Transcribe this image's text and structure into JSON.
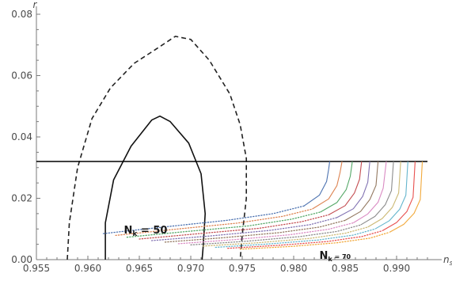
{
  "chart_data": {
    "type": "line",
    "title": "",
    "xlabel": "n",
    "xlabel_sub": "s",
    "ylabel": "r",
    "xlim": [
      0.955,
      0.993
    ],
    "ylim": [
      0.0,
      0.08
    ],
    "x_ticks": [
      0.955,
      0.96,
      0.965,
      0.97,
      0.975,
      0.98,
      0.985,
      0.99
    ],
    "x_tick_labels": [
      "0.955",
      "0.960",
      "0.965",
      "0.970",
      "0.975",
      "0.980",
      "0.985",
      "0.990"
    ],
    "y_ticks": [
      0.0,
      0.02,
      0.04,
      0.06,
      0.08
    ],
    "y_tick_labels": [
      "0.00",
      "0.02",
      "0.04",
      "0.06",
      "0.08"
    ],
    "grid": false,
    "hline": {
      "y": 0.032,
      "color": "#000000"
    },
    "contours": [
      {
        "style": "dashed",
        "color": "#222222",
        "points": [
          [
            0.958,
            0.0
          ],
          [
            0.9582,
            0.012
          ],
          [
            0.959,
            0.03
          ],
          [
            0.9604,
            0.046
          ],
          [
            0.9622,
            0.056
          ],
          [
            0.9645,
            0.064
          ],
          [
            0.9668,
            0.069
          ],
          [
            0.9685,
            0.0728
          ],
          [
            0.97,
            0.0718
          ],
          [
            0.9718,
            0.065
          ],
          [
            0.9738,
            0.054
          ],
          [
            0.9748,
            0.044
          ],
          [
            0.9754,
            0.033
          ],
          [
            0.9754,
            0.02
          ],
          [
            0.975,
            0.008
          ],
          [
            0.9748,
            0.0
          ]
        ]
      },
      {
        "style": "solid",
        "color": "#111111",
        "points": [
          [
            0.9617,
            0.0
          ],
          [
            0.9617,
            0.012
          ],
          [
            0.9625,
            0.026
          ],
          [
            0.9642,
            0.037
          ],
          [
            0.9662,
            0.0455
          ],
          [
            0.967,
            0.0468
          ],
          [
            0.968,
            0.045
          ],
          [
            0.9698,
            0.038
          ],
          [
            0.971,
            0.028
          ],
          [
            0.9714,
            0.015
          ],
          [
            0.9712,
            0.004
          ],
          [
            0.9711,
            0.0
          ]
        ]
      }
    ],
    "series": [
      {
        "color": "#4c72b0",
        "points": [
          [
            0.9615,
            0.0085
          ],
          [
            0.967,
            0.0105
          ],
          [
            0.9735,
            0.0128
          ],
          [
            0.978,
            0.015
          ],
          [
            0.981,
            0.0175
          ],
          [
            0.9825,
            0.021
          ],
          [
            0.9832,
            0.0255
          ],
          [
            0.9834,
            0.0295
          ],
          [
            0.9835,
            0.032
          ]
        ]
      },
      {
        "color": "#dd8452",
        "points": [
          [
            0.9627,
            0.0079
          ],
          [
            0.9682,
            0.0098
          ],
          [
            0.9745,
            0.0119
          ],
          [
            0.9789,
            0.0141
          ],
          [
            0.9818,
            0.0165
          ],
          [
            0.9834,
            0.0198
          ],
          [
            0.9842,
            0.0241
          ],
          [
            0.9845,
            0.0283
          ],
          [
            0.9847,
            0.032
          ]
        ]
      },
      {
        "color": "#55a868",
        "points": [
          [
            0.9638,
            0.0073
          ],
          [
            0.9694,
            0.0091
          ],
          [
            0.9756,
            0.011
          ],
          [
            0.9798,
            0.0132
          ],
          [
            0.9826,
            0.0155
          ],
          [
            0.9842,
            0.0186
          ],
          [
            0.9851,
            0.0228
          ],
          [
            0.9855,
            0.0272
          ],
          [
            0.9857,
            0.032
          ]
        ]
      },
      {
        "color": "#c44e52",
        "points": [
          [
            0.965,
            0.0067
          ],
          [
            0.9706,
            0.0084
          ],
          [
            0.9766,
            0.0102
          ],
          [
            0.9807,
            0.0123
          ],
          [
            0.9834,
            0.0146
          ],
          [
            0.985,
            0.0176
          ],
          [
            0.9859,
            0.0217
          ],
          [
            0.9864,
            0.0262
          ],
          [
            0.9866,
            0.032
          ]
        ]
      },
      {
        "color": "#8172b2",
        "points": [
          [
            0.9662,
            0.0062
          ],
          [
            0.9718,
            0.0077
          ],
          [
            0.9776,
            0.0095
          ],
          [
            0.9816,
            0.0114
          ],
          [
            0.9842,
            0.0137
          ],
          [
            0.9858,
            0.0166
          ],
          [
            0.9867,
            0.0206
          ],
          [
            0.9872,
            0.0252
          ],
          [
            0.9874,
            0.032
          ]
        ]
      },
      {
        "color": "#937860",
        "points": [
          [
            0.9675,
            0.0057
          ],
          [
            0.973,
            0.0071
          ],
          [
            0.9786,
            0.0088
          ],
          [
            0.9825,
            0.0106
          ],
          [
            0.985,
            0.0128
          ],
          [
            0.9865,
            0.0157
          ],
          [
            0.9874,
            0.0196
          ],
          [
            0.988,
            0.0242
          ],
          [
            0.9882,
            0.032
          ]
        ]
      },
      {
        "color": "#da8bc3",
        "points": [
          [
            0.9688,
            0.0052
          ],
          [
            0.9742,
            0.0065
          ],
          [
            0.9796,
            0.0081
          ],
          [
            0.9834,
            0.0099
          ],
          [
            0.9858,
            0.012
          ],
          [
            0.9872,
            0.0149
          ],
          [
            0.9882,
            0.0187
          ],
          [
            0.9887,
            0.0233
          ],
          [
            0.989,
            0.032
          ]
        ]
      },
      {
        "color": "#8c8c8c",
        "points": [
          [
            0.97,
            0.0048
          ],
          [
            0.9754,
            0.006
          ],
          [
            0.9806,
            0.0075
          ],
          [
            0.9842,
            0.0092
          ],
          [
            0.9865,
            0.0113
          ],
          [
            0.9879,
            0.0141
          ],
          [
            0.9889,
            0.0179
          ],
          [
            0.9895,
            0.0225
          ],
          [
            0.9897,
            0.032
          ]
        ]
      },
      {
        "color": "#ccb974",
        "points": [
          [
            0.9712,
            0.0044
          ],
          [
            0.9765,
            0.0055
          ],
          [
            0.9815,
            0.0069
          ],
          [
            0.985,
            0.0086
          ],
          [
            0.9872,
            0.0106
          ],
          [
            0.9886,
            0.0134
          ],
          [
            0.9896,
            0.0171
          ],
          [
            0.9902,
            0.0217
          ],
          [
            0.9904,
            0.032
          ]
        ]
      },
      {
        "color": "#64b5cd",
        "points": [
          [
            0.9724,
            0.004
          ],
          [
            0.9776,
            0.0051
          ],
          [
            0.9824,
            0.0064
          ],
          [
            0.9858,
            0.008
          ],
          [
            0.9879,
            0.01
          ],
          [
            0.9893,
            0.0127
          ],
          [
            0.9903,
            0.0164
          ],
          [
            0.9909,
            0.021
          ],
          [
            0.9911,
            0.032
          ]
        ]
      },
      {
        "color": "#e8504f",
        "points": [
          [
            0.9736,
            0.0037
          ],
          [
            0.9787,
            0.0047
          ],
          [
            0.9833,
            0.0059
          ],
          [
            0.9866,
            0.0075
          ],
          [
            0.9886,
            0.0094
          ],
          [
            0.99,
            0.0121
          ],
          [
            0.991,
            0.0157
          ],
          [
            0.9916,
            0.0203
          ],
          [
            0.9918,
            0.032
          ]
        ]
      },
      {
        "color": "#f2a93b",
        "points": [
          [
            0.9748,
            0.0034
          ],
          [
            0.9798,
            0.0043
          ],
          [
            0.9842,
            0.0055
          ],
          [
            0.9874,
            0.007
          ],
          [
            0.9893,
            0.0089
          ],
          [
            0.9907,
            0.0115
          ],
          [
            0.9917,
            0.0151
          ],
          [
            0.9923,
            0.0196
          ],
          [
            0.9925,
            0.032
          ]
        ]
      }
    ],
    "annotations": [
      {
        "main": "N",
        "sub": "k",
        "suffix": " = 50",
        "x": 0.9635,
        "y": 0.0085,
        "size": "large"
      },
      {
        "main": "N",
        "sub": "k",
        "suffix": " = 70",
        "x": 0.9825,
        "y": 0.0003,
        "size": "small"
      }
    ]
  }
}
